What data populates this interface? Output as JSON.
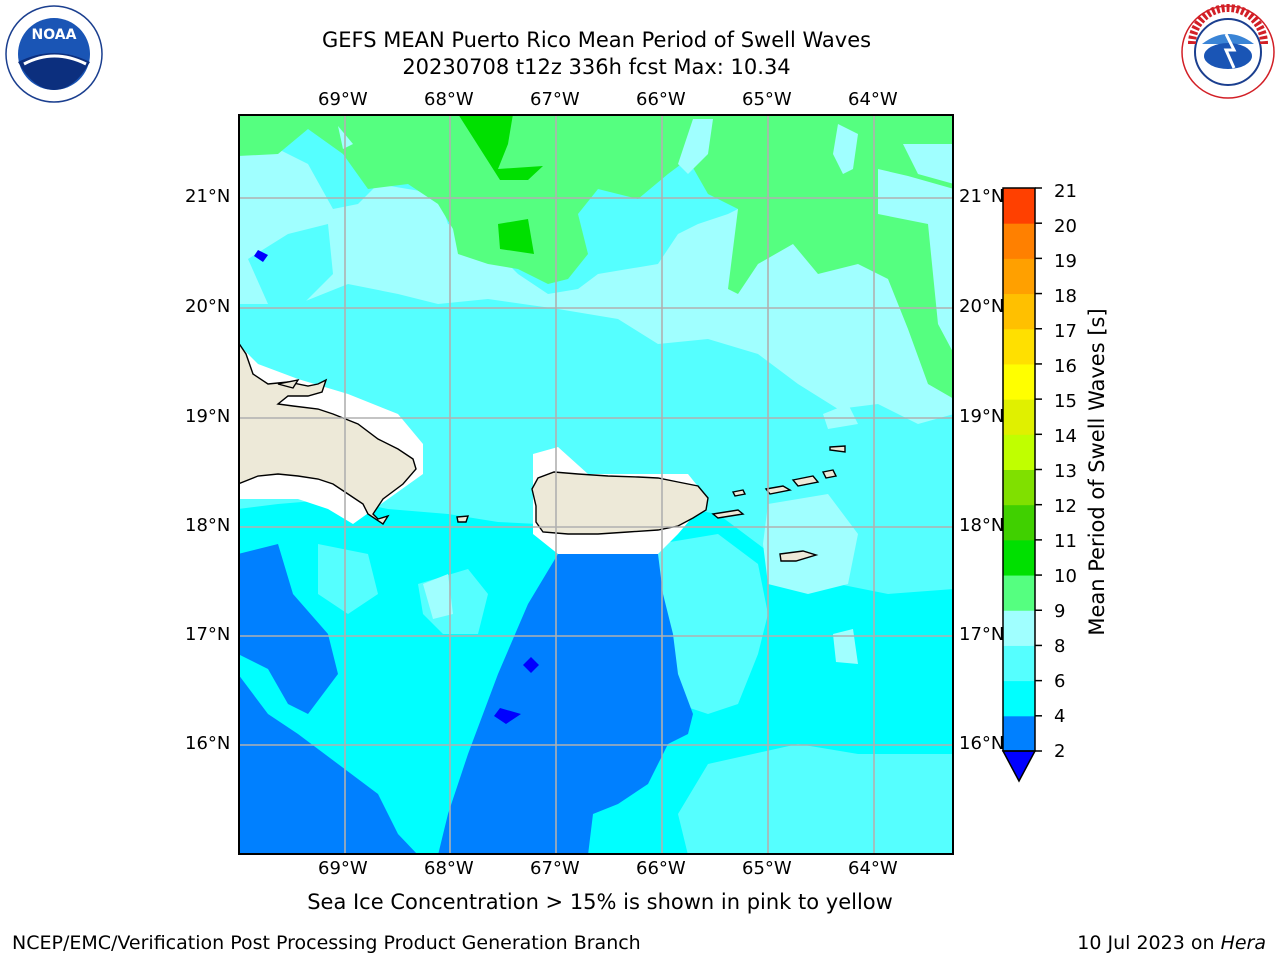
{
  "header": {
    "title_line1": "GEFS MEAN Puerto Rico Mean Period of Swell Waves",
    "title_line2": "20230708 t12z 336h fcst   Max: 10.34"
  },
  "logos": {
    "noara_text": "NOAA",
    "noaa_ring": "NATIONAL OCEANIC AND ATMOSPHERIC ADMINISTRATION · U.S. DEPARTMENT OF COMMERCE",
    "nws_ring": "NATIONAL WEATHER SERVICE"
  },
  "map": {
    "lon_labels": [
      "69°W",
      "68°W",
      "67°W",
      "66°W",
      "65°W",
      "64°W"
    ],
    "lat_labels": [
      "21°N",
      "20°N",
      "19°N",
      "18°N",
      "17°N",
      "16°N"
    ],
    "land_color": "#ede9d8",
    "grid_color": "#b0b0b0"
  },
  "colorbar": {
    "label": "Mean Period of Swell Waves [s]",
    "ticks": [
      "2",
      "4",
      "6",
      "8",
      "9",
      "10",
      "11",
      "12",
      "13",
      "14",
      "15",
      "16",
      "17",
      "18",
      "19",
      "20",
      "21"
    ],
    "colors": [
      "#0080ff",
      "#00ffff",
      "#55ffff",
      "#a0ffff",
      "#55ff80",
      "#00e000",
      "#40d000",
      "#80e000",
      "#c0ff00",
      "#e0f000",
      "#ffff00",
      "#ffe000",
      "#ffc000",
      "#ffa000",
      "#ff8000",
      "#ff4000",
      "#ff0000"
    ],
    "under_color": "#0000ff"
  },
  "notes": {
    "sea_ice": "Sea Ice Concentration > 15% is shown in pink to yellow"
  },
  "footer": {
    "left": "NCEP/EMC/Verification Post Processing Product Generation Branch",
    "right_date": "10 Jul 2023 on ",
    "right_host": "Hera"
  }
}
